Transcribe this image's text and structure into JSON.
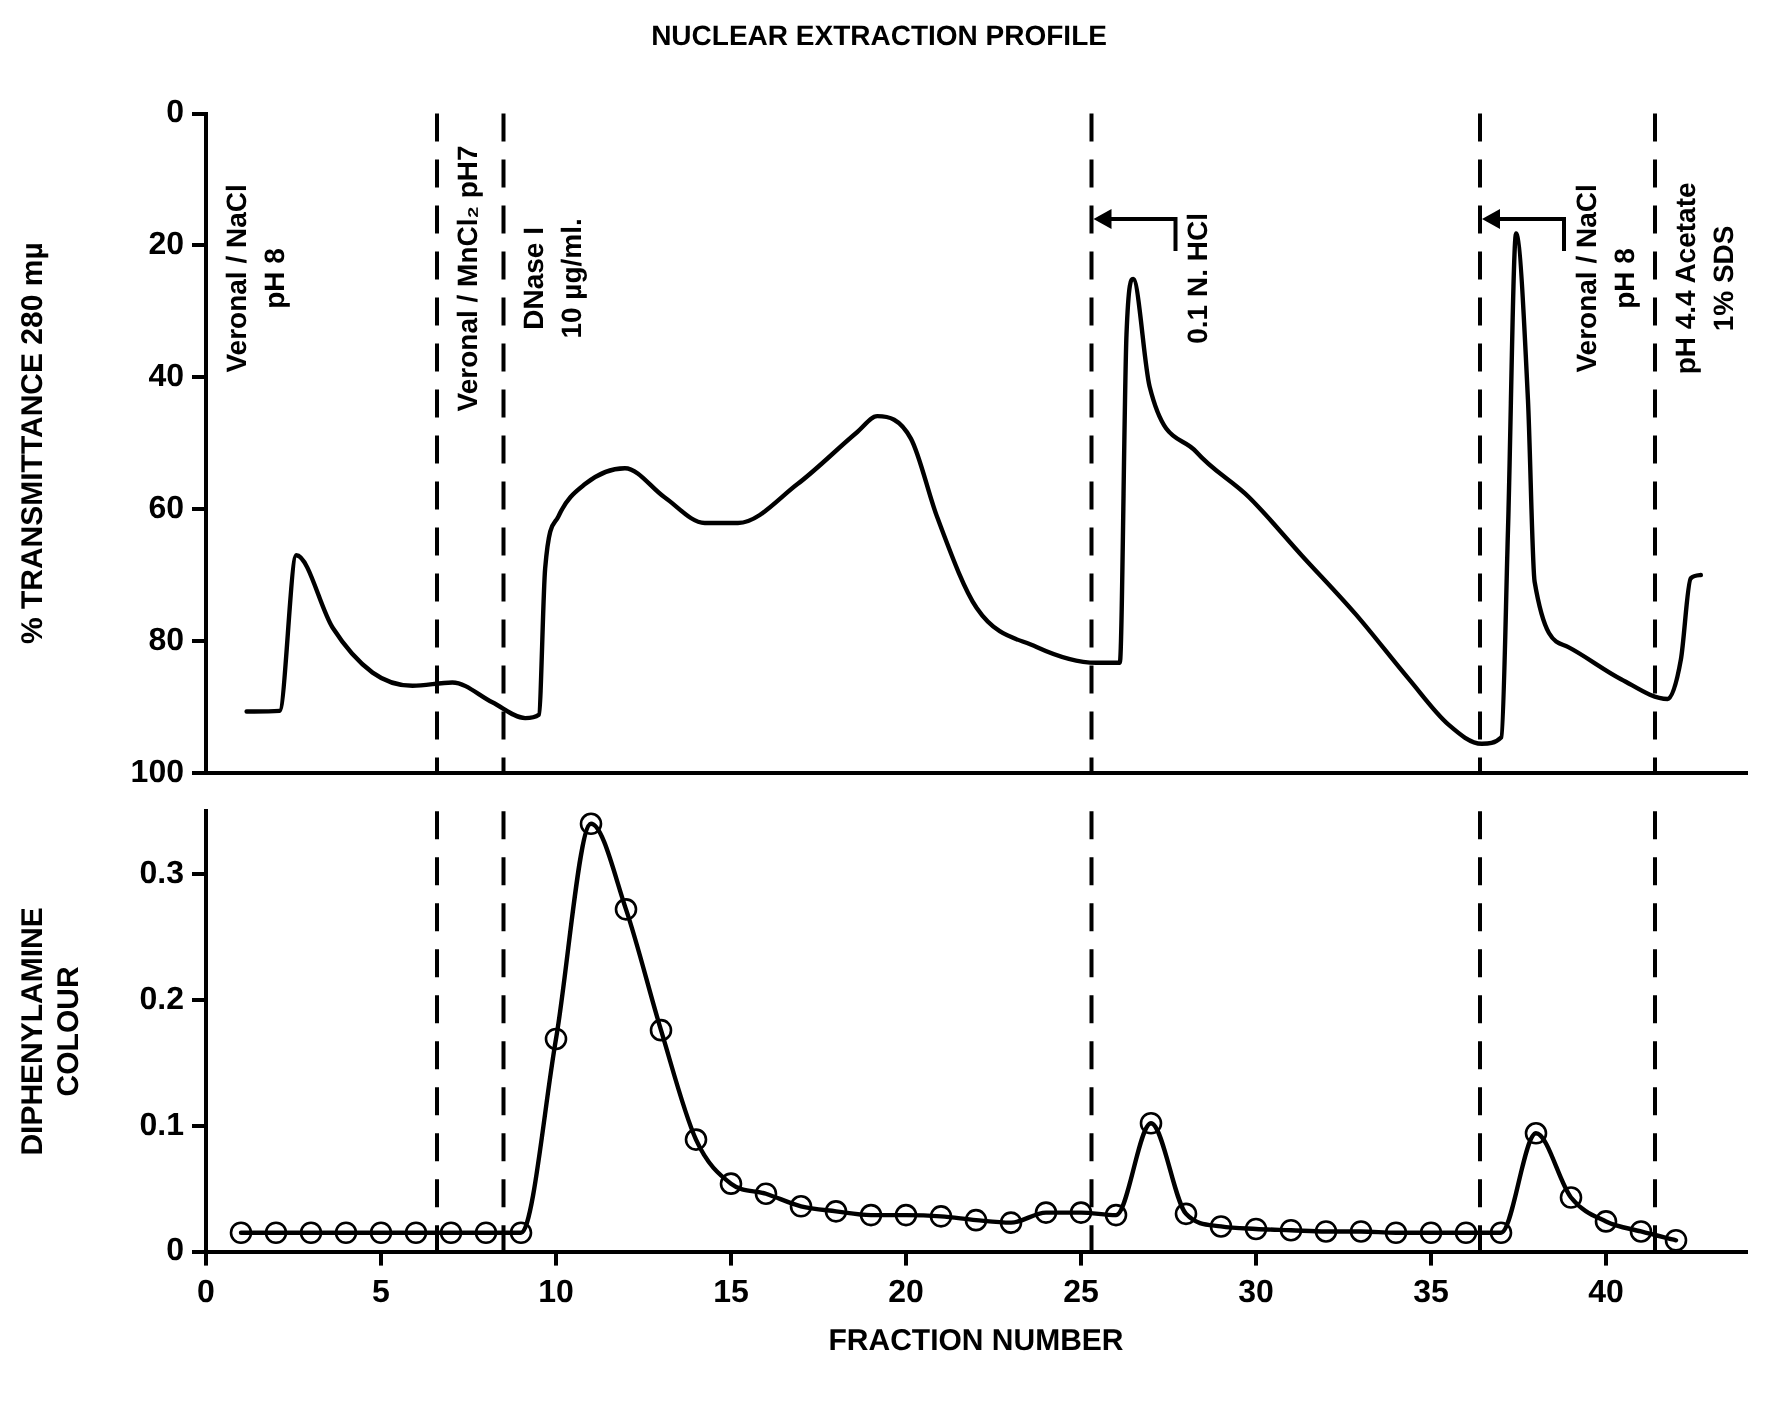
{
  "chart_data": [
    {
      "type": "line",
      "title": "NUCLEAR EXTRACTION PROFILE",
      "ylabel": "% TRANSMITTANCE 280 mµ",
      "xlim": [
        0,
        44
      ],
      "ylim": [
        100,
        0
      ],
      "yticks": [
        0,
        20,
        40,
        60,
        80,
        100
      ],
      "tick_labels": "y",
      "grid": false,
      "legend": false,
      "line_style": "solid",
      "series": [
        {
          "color": "#000000",
          "x": [
            1.16,
            2.1,
            2.58,
            3.62,
            4.76,
            5.9,
            7.04,
            8.18,
            9.12,
            9.51,
            9.69,
            10.07,
            10.83,
            11.97,
            13.1,
            14.25,
            15.2,
            16.9,
            18.61,
            19.18,
            20.14,
            20.89,
            22.02,
            23.73,
            25.44,
            26.11,
            26.3,
            26.49,
            26.96,
            28.29,
            29.8,
            31.32,
            32.84,
            34.37,
            35.5,
            36.45,
            37.01,
            37.2,
            37.43,
            37.77,
            37.96,
            38.91,
            40.43,
            41.76,
            42.14,
            42.42,
            42.71
          ],
          "values": [
            90.7,
            90.6,
            67,
            78,
            84.8,
            86.8,
            86.3,
            89.3,
            91.7,
            91.2,
            69,
            61.1,
            56.2,
            53.8,
            58.2,
            62.1,
            62.1,
            56.2,
            48.3,
            45.9,
            49.3,
            61.2,
            75,
            80.9,
            83.3,
            83.3,
            33.5,
            25.1,
            41.4,
            51.3,
            58.2,
            67.1,
            75.9,
            85.8,
            92.7,
            95.6,
            94.6,
            63.1,
            18.2,
            43.4,
            71,
            80.9,
            85.8,
            88.8,
            82.8,
            70.5,
            70
          ]
        }
      ],
      "ref_lines": [
        {
          "axis": "x",
          "value": 6.6,
          "line_style": "dashed"
        },
        {
          "axis": "x",
          "value": 8.5,
          "line_style": "dashed"
        },
        {
          "axis": "x",
          "value": 25.3,
          "line_style": "dashed"
        },
        {
          "axis": "x",
          "value": 36.4,
          "line_style": "dashed"
        },
        {
          "axis": "x",
          "value": 41.4,
          "line_style": "dashed"
        }
      ],
      "annotations": [
        "Veronal / NaCl\npH 8",
        "Veronal / MnCl₂ pH7",
        "DNase I\n10 µg/ml.",
        {
          "text": "0.1 N. HCl",
          "x": 25.3,
          "y": 16
        },
        {
          "text": "Veronal / NaCl\npH 8",
          "x": 36.4,
          "y": 16
        },
        "pH 4.4 Acetate\n1% SDS"
      ]
    },
    {
      "type": "line",
      "xlabel": "FRACTION NUMBER",
      "ylabel": "DIPHENYLAMINE\nCOLOUR",
      "xlim": [
        0,
        44
      ],
      "xticks": [
        0,
        5,
        10,
        15,
        20,
        25,
        30,
        35,
        40
      ],
      "ylim": [
        0,
        0.35
      ],
      "yticks": [
        0,
        0.1,
        0.2,
        0.3
      ],
      "grid": false,
      "legend": false,
      "line_style": "solid",
      "marker": "circle",
      "series": [
        {
          "color": "#000000",
          "x": [
            1,
            2,
            3,
            4,
            5,
            6,
            7,
            8,
            9,
            10,
            11,
            12,
            13,
            14,
            15,
            16,
            17,
            18,
            19,
            20,
            21,
            22,
            23,
            24,
            25,
            26,
            27,
            28,
            29,
            30,
            31,
            32,
            33,
            34,
            35,
            36,
            37,
            38,
            39,
            40,
            41,
            42
          ],
          "values": [
            0.015,
            0.015,
            0.015,
            0.015,
            0.015,
            0.015,
            0.015,
            0.015,
            0.015,
            0.169,
            0.34,
            0.272,
            0.176,
            0.089,
            0.054,
            0.046,
            0.036,
            0.032,
            0.029,
            0.029,
            0.028,
            0.025,
            0.023,
            0.031,
            0.031,
            0.029,
            0.102,
            0.03,
            0.02,
            0.018,
            0.017,
            0.016,
            0.016,
            0.015,
            0.015,
            0.015,
            0.015,
            0.094,
            0.043,
            0.024,
            0.016,
            0.009
          ]
        }
      ],
      "ref_lines": [
        {
          "axis": "x",
          "value": 6.6,
          "line_style": "dashed"
        },
        {
          "axis": "x",
          "value": 8.5,
          "line_style": "dashed"
        },
        {
          "axis": "x",
          "value": 25.3,
          "line_style": "dashed"
        },
        {
          "axis": "x",
          "value": 36.4,
          "line_style": "dashed"
        },
        {
          "axis": "x",
          "value": 41.4,
          "line_style": "dashed"
        }
      ]
    }
  ]
}
